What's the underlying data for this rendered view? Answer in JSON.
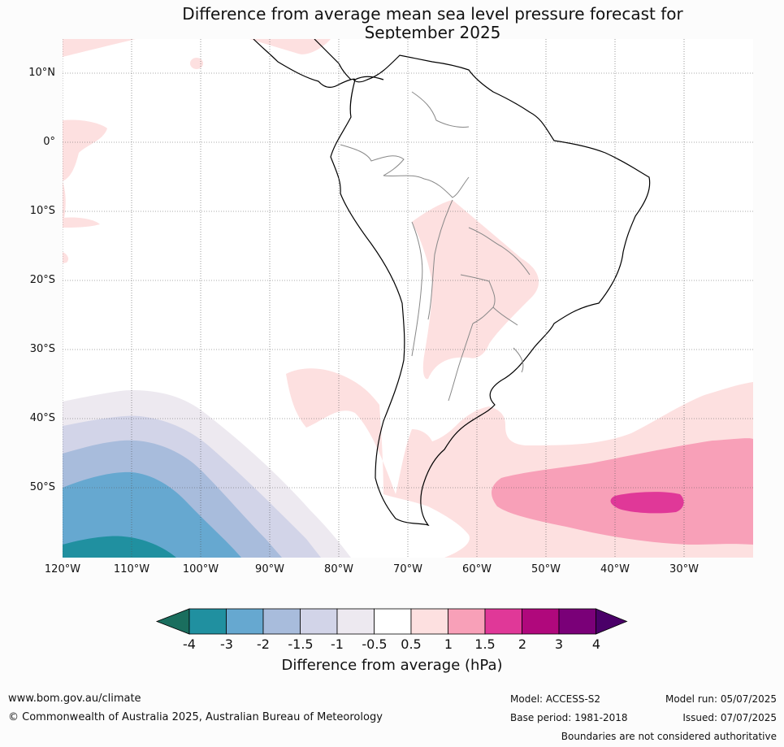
{
  "title_line1": "Difference from average mean sea level pressure forecast for",
  "title_line2": "September 2025",
  "lat_labels": [
    "10°N",
    "0°",
    "10°S",
    "20°S",
    "30°S",
    "40°S",
    "50°S"
  ],
  "lon_labels": [
    "120°W",
    "110°W",
    "100°W",
    "90°W",
    "80°W",
    "70°W",
    "60°W",
    "50°W",
    "40°W",
    "30°W"
  ],
  "colorbar": {
    "ticks": [
      "-4",
      "-3",
      "-2",
      "-1.5",
      "-1",
      "-0.5",
      "0.5",
      "1",
      "1.5",
      "2",
      "3",
      "4"
    ],
    "colors": [
      "#1a6e5e",
      "#2090a0",
      "#66a8d0",
      "#a8bcdc",
      "#d2d4e8",
      "#ede9f0",
      "#ffffff",
      "#fde0e0",
      "#f8a0b8",
      "#e03898",
      "#b0087c",
      "#7a0078",
      "#4a0068"
    ],
    "label": "Difference from average (hPa)"
  },
  "footer": {
    "url": "www.bom.gov.au/climate",
    "copyright": "© Commonwealth of Australia 2025, Australian Bureau of Meteorology",
    "model": "Model: ACCESS-S2",
    "base_period": "Base period: 1981-2018",
    "model_run": "Model run: 05/07/2025",
    "issued": "Issued: 07/07/2025",
    "disclaimer": "Boundaries are not considered authoritative"
  }
}
